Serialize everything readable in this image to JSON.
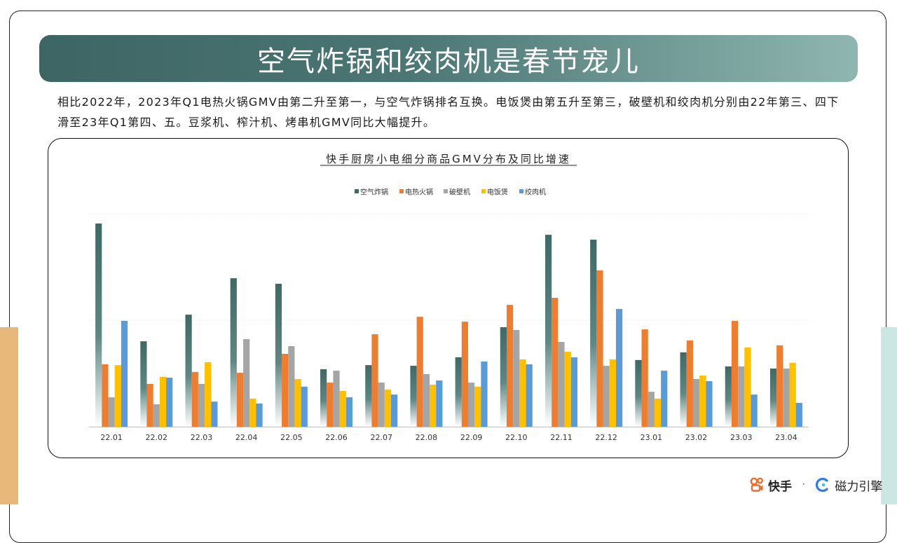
{
  "title": "空气炸锅和绞肉机是春节宠儿",
  "description": "相比2022年，2023年Q1电热火锅GMV由第二升至第一，与空气炸锅排名互换。电饭煲由第五升至第三，破壁机和绞肉机分别由22年第三、四下滑至23年Q1第四、五。豆浆机、榨汁机、烤串机GMV同比大幅提升。",
  "footer": {
    "brand1": "快手",
    "separator": "·",
    "brand2": "磁力引擎"
  },
  "chart_data": {
    "type": "bar",
    "title": "快手厨房小电细分商品GMV分布及同比增速",
    "legend_position": "top",
    "grid": true,
    "categories": [
      "22.01",
      "22.02",
      "22.03",
      "22.04",
      "22.05",
      "22.06",
      "22.07",
      "22.08",
      "22.09",
      "22.10",
      "22.11",
      "22.12",
      "23.01",
      "23.02",
      "23.03",
      "23.04"
    ],
    "ylim": [
      0,
      100
    ],
    "series": [
      {
        "name": "空气炸锅",
        "color": "#3f6966",
        "gradient": true,
        "values": [
          95.4,
          40.1,
          52.6,
          69.7,
          67.1,
          27.0,
          28.9,
          28.6,
          32.6,
          46.7,
          90.1,
          87.8,
          31.3,
          34.9,
          28.3,
          27.3
        ]
      },
      {
        "name": "电热火锅",
        "color": "#ed7d31",
        "values": [
          29.3,
          20.1,
          25.7,
          25.3,
          34.2,
          20.7,
          43.4,
          51.6,
          49.3,
          57.2,
          60.5,
          73.4,
          45.7,
          40.5,
          49.7,
          38.2
        ]
      },
      {
        "name": "破壁机",
        "color": "#a5a5a5",
        "values": [
          13.8,
          10.5,
          20.1,
          41.1,
          37.8,
          26.3,
          20.7,
          24.7,
          20.7,
          45.4,
          39.8,
          28.6,
          16.4,
          22.4,
          28.3,
          27.3
        ]
      },
      {
        "name": "电饭煲",
        "color": "#ffc000",
        "values": [
          28.9,
          23.4,
          30.3,
          13.2,
          22.4,
          16.8,
          17.4,
          19.7,
          18.8,
          31.6,
          35.2,
          31.6,
          13.2,
          24.0,
          37.2,
          30.0
        ]
      },
      {
        "name": "绞肉机",
        "color": "#5b9bd5",
        "values": [
          49.7,
          23.0,
          11.8,
          10.9,
          18.8,
          13.8,
          15.1,
          21.7,
          30.6,
          29.3,
          32.6,
          55.3,
          26.3,
          21.4,
          15.1,
          11.2
        ]
      }
    ]
  }
}
